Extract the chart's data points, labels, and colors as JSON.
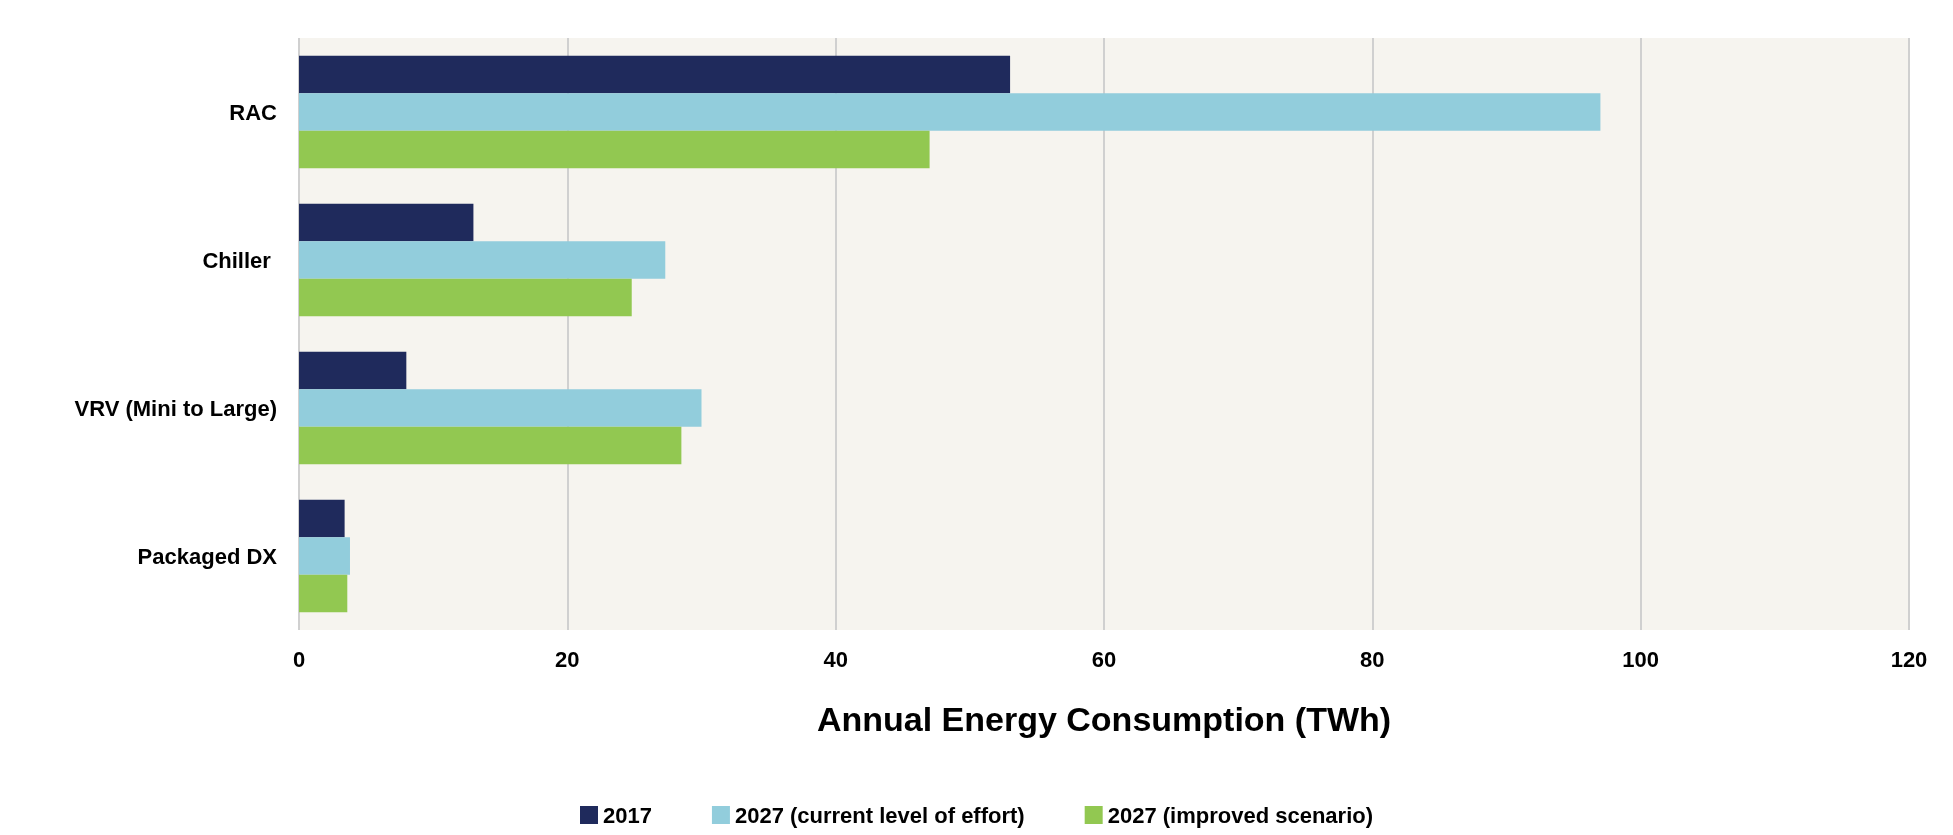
{
  "chart_data": {
    "type": "bar",
    "orientation": "horizontal",
    "xlabel": "Annual Energy Consumption (TWh)",
    "categories": [
      "RAC",
      "Chiller ",
      "VRV (Mini to Large)",
      "Packaged DX"
    ],
    "series": [
      {
        "name": "2017",
        "color": "#1f2a5c",
        "values": [
          53,
          13,
          8,
          3.4
        ]
      },
      {
        "name": "2027 (current level of effort)",
        "color": "#92cddc",
        "values": [
          97,
          27.3,
          30,
          3.8
        ]
      },
      {
        "name": "2027 (improved scenario)",
        "color": "#92c851",
        "values": [
          47,
          24.8,
          28.5,
          3.6
        ]
      }
    ],
    "xlim": [
      0,
      120
    ],
    "xticks": [
      0,
      20,
      40,
      60,
      80,
      100,
      120
    ],
    "grid": "x",
    "legend": "bottom"
  }
}
